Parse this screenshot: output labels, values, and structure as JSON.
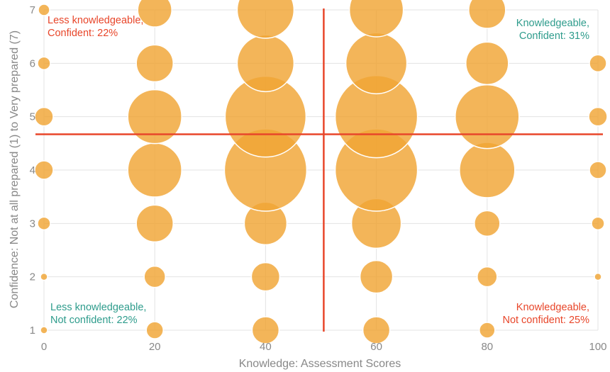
{
  "chart_data": {
    "type": "scatter",
    "xlabel": "Knowledge: Assessment Scores",
    "ylabel": "Confidence: Not at all prepared (1) to Very prepared (7)",
    "xlim": [
      0,
      100
    ],
    "ylim": [
      1,
      7
    ],
    "xticks": [
      "0",
      "20",
      "40",
      "60",
      "80",
      "100"
    ],
    "yticks": [
      "1",
      "2",
      "3",
      "4",
      "5",
      "6",
      "7"
    ],
    "grid": true,
    "bubble_color": "#F0A535",
    "line_color": "#E8462A",
    "divider_x": 50.5,
    "divider_y": 4.67,
    "points": [
      {
        "x": 0,
        "y": 1,
        "r": 5
      },
      {
        "x": 0,
        "y": 2,
        "r": 5
      },
      {
        "x": 0,
        "y": 3,
        "r": 9
      },
      {
        "x": 0,
        "y": 4,
        "r": 13
      },
      {
        "x": 0,
        "y": 5,
        "r": 13
      },
      {
        "x": 0,
        "y": 6,
        "r": 9
      },
      {
        "x": 0,
        "y": 7,
        "r": 8
      },
      {
        "x": 20,
        "y": 1,
        "r": 12
      },
      {
        "x": 20,
        "y": 2,
        "r": 15
      },
      {
        "x": 20,
        "y": 3,
        "r": 26
      },
      {
        "x": 20,
        "y": 4,
        "r": 38
      },
      {
        "x": 20,
        "y": 5,
        "r": 38
      },
      {
        "x": 20,
        "y": 6,
        "r": 26
      },
      {
        "x": 20,
        "y": 7,
        "r": 24
      },
      {
        "x": 40,
        "y": 1,
        "r": 19
      },
      {
        "x": 40,
        "y": 2,
        "r": 20
      },
      {
        "x": 40,
        "y": 3,
        "r": 30
      },
      {
        "x": 40,
        "y": 4,
        "r": 58
      },
      {
        "x": 40,
        "y": 5,
        "r": 57
      },
      {
        "x": 40,
        "y": 6,
        "r": 40
      },
      {
        "x": 40,
        "y": 7,
        "r": 40
      },
      {
        "x": 60,
        "y": 1,
        "r": 19
      },
      {
        "x": 60,
        "y": 2,
        "r": 23
      },
      {
        "x": 60,
        "y": 3,
        "r": 35
      },
      {
        "x": 60,
        "y": 4,
        "r": 58
      },
      {
        "x": 60,
        "y": 5,
        "r": 58
      },
      {
        "x": 60,
        "y": 6,
        "r": 43
      },
      {
        "x": 60,
        "y": 7,
        "r": 38
      },
      {
        "x": 80,
        "y": 1,
        "r": 11
      },
      {
        "x": 80,
        "y": 2,
        "r": 14
      },
      {
        "x": 80,
        "y": 3,
        "r": 18
      },
      {
        "x": 80,
        "y": 4,
        "r": 39
      },
      {
        "x": 80,
        "y": 5,
        "r": 45
      },
      {
        "x": 80,
        "y": 6,
        "r": 30
      },
      {
        "x": 80,
        "y": 7,
        "r": 26
      },
      {
        "x": 100,
        "y": 2,
        "r": 5
      },
      {
        "x": 100,
        "y": 3,
        "r": 9
      },
      {
        "x": 100,
        "y": 4,
        "r": 12
      },
      {
        "x": 100,
        "y": 5,
        "r": 13
      },
      {
        "x": 100,
        "y": 6,
        "r": 12
      }
    ],
    "annotations": [
      {
        "lines": [
          "Less knowledgeable,",
          "Confident: 22%"
        ],
        "color": "#E8462A",
        "position": "top-left"
      },
      {
        "lines": [
          "Knowledgeable,",
          "Confident: 31%"
        ],
        "color": "#2E9C8C",
        "position": "top-right"
      },
      {
        "lines": [
          "Less knowledgeable,",
          "Not confident: 22%"
        ],
        "color": "#2E9C8C",
        "position": "bottom-left"
      },
      {
        "lines": [
          "Knowledgeable,",
          "Not confident: 25%"
        ],
        "color": "#E8462A",
        "position": "bottom-right"
      }
    ]
  }
}
